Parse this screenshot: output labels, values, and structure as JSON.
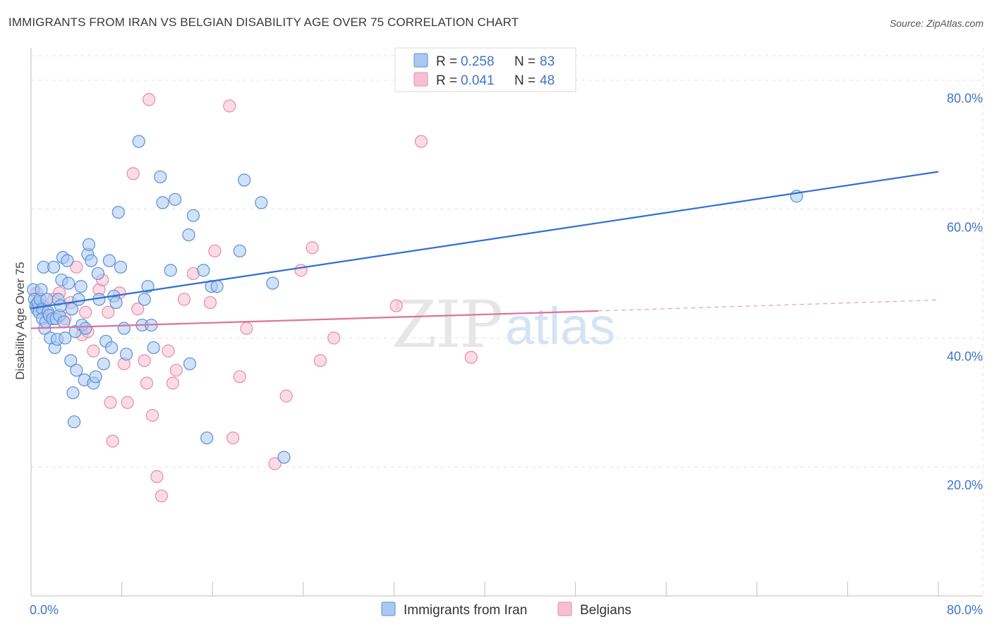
{
  "title": "IMMIGRANTS FROM IRAN VS BELGIAN DISABILITY AGE OVER 75 CORRELATION CHART",
  "source": "Source: ZipAtlas.com",
  "watermark": {
    "zip": "ZIP",
    "atlas": "atlas"
  },
  "colors": {
    "blue_fill": "#a9c8f2",
    "blue_stroke": "#5a8fd8",
    "blue_line": "#2f6fd0",
    "pink_fill": "#f7bfd1",
    "pink_stroke": "#e88aa8",
    "pink_line": "#e0709a",
    "tick_text": "#3f74cc",
    "grid": "#e3e3e3"
  },
  "legend": {
    "items": [
      {
        "r_label": "R = ",
        "r_value": "0.258",
        "n_label": "N = ",
        "n_value": "83"
      },
      {
        "r_label": "R = ",
        "r_value": "0.041",
        "n_label": "N = ",
        "n_value": "48"
      }
    ]
  },
  "chart_data": {
    "type": "scatter",
    "title": "IMMIGRANTS FROM IRAN VS BELGIAN DISABILITY AGE OVER 75 CORRELATION CHART",
    "xlabel": "",
    "ylabel": "Disability Age Over 75",
    "xlim": [
      0,
      80
    ],
    "ylim": [
      0,
      85
    ],
    "x_tick_labels": [
      "0.0%",
      "80.0%"
    ],
    "y_ticks": [
      20,
      40,
      60,
      80
    ],
    "y_tick_labels": [
      "20.0%",
      "40.0%",
      "60.0%",
      "80.0%"
    ],
    "grid": true,
    "legend_position": "top-center",
    "series": [
      {
        "name": "Immigrants from Iran",
        "R": 0.258,
        "N": 83,
        "trend": {
          "x0": 0,
          "y0": 44.6,
          "x1": 80,
          "y1": 65.8
        },
        "points": [
          [
            0.2,
            47.5
          ],
          [
            0.3,
            46
          ],
          [
            0.4,
            45
          ],
          [
            0.5,
            44.5
          ],
          [
            0.6,
            45.5
          ],
          [
            0.7,
            44
          ],
          [
            0.8,
            46
          ],
          [
            0.9,
            47.5
          ],
          [
            1.0,
            44.5
          ],
          [
            1.0,
            43
          ],
          [
            1.1,
            51
          ],
          [
            1.2,
            41.5
          ],
          [
            1.3,
            42.5
          ],
          [
            1.4,
            46
          ],
          [
            1.5,
            44
          ],
          [
            1.6,
            43.5
          ],
          [
            1.7,
            40
          ],
          [
            1.9,
            43
          ],
          [
            2.0,
            51
          ],
          [
            2.1,
            38.5
          ],
          [
            2.2,
            43
          ],
          [
            2.3,
            39.8
          ],
          [
            2.4,
            46
          ],
          [
            2.5,
            43.5
          ],
          [
            2.6,
            45
          ],
          [
            2.7,
            49
          ],
          [
            2.8,
            52.5
          ],
          [
            2.9,
            42.5
          ],
          [
            3.0,
            40
          ],
          [
            3.2,
            52
          ],
          [
            3.3,
            48.5
          ],
          [
            3.5,
            36.5
          ],
          [
            3.6,
            44.5
          ],
          [
            3.7,
            31.5
          ],
          [
            3.8,
            27
          ],
          [
            3.9,
            41
          ],
          [
            4.0,
            35
          ],
          [
            4.2,
            46
          ],
          [
            4.4,
            48
          ],
          [
            4.5,
            42
          ],
          [
            4.7,
            33.5
          ],
          [
            4.8,
            41.5
          ],
          [
            5.0,
            53
          ],
          [
            5.1,
            54.5
          ],
          [
            5.3,
            52
          ],
          [
            5.5,
            33
          ],
          [
            5.7,
            34
          ],
          [
            5.9,
            50
          ],
          [
            6.0,
            46
          ],
          [
            6.4,
            36
          ],
          [
            6.6,
            39.5
          ],
          [
            6.9,
            52
          ],
          [
            7.1,
            38.5
          ],
          [
            7.3,
            46.5
          ],
          [
            7.5,
            45.5
          ],
          [
            7.7,
            59.5
          ],
          [
            7.9,
            51
          ],
          [
            8.2,
            41.5
          ],
          [
            8.4,
            37.5
          ],
          [
            9.5,
            70.5
          ],
          [
            9.8,
            42
          ],
          [
            10.0,
            46
          ],
          [
            10.3,
            48
          ],
          [
            10.6,
            42
          ],
          [
            10.8,
            38.5
          ],
          [
            11.4,
            65
          ],
          [
            11.6,
            61
          ],
          [
            12.3,
            50.5
          ],
          [
            12.7,
            61.5
          ],
          [
            13.9,
            56
          ],
          [
            14.0,
            36
          ],
          [
            14.3,
            59
          ],
          [
            15.2,
            50.5
          ],
          [
            15.5,
            24.5
          ],
          [
            15.9,
            48
          ],
          [
            16.4,
            48
          ],
          [
            18.4,
            53.5
          ],
          [
            18.8,
            64.5
          ],
          [
            20.3,
            61
          ],
          [
            21.3,
            48.5
          ],
          [
            22.3,
            21.5
          ],
          [
            67.5,
            62
          ]
        ]
      },
      {
        "name": "Belgians",
        "R": 0.041,
        "N": 48,
        "trend": {
          "x0": 0,
          "y0": 41.5,
          "x1": 50,
          "y1": 44.2
        },
        "trend_dashed_to": {
          "x": 80,
          "y": 45.9
        },
        "points": [
          [
            0.5,
            47
          ],
          [
            1.0,
            45
          ],
          [
            1.5,
            44
          ],
          [
            2.0,
            46
          ],
          [
            2.5,
            47
          ],
          [
            3.0,
            43
          ],
          [
            3.5,
            45.5
          ],
          [
            4.0,
            51
          ],
          [
            4.5,
            40.5
          ],
          [
            5.0,
            41
          ],
          [
            5.5,
            38
          ],
          [
            6.0,
            47.5
          ],
          [
            6.3,
            49
          ],
          [
            6.8,
            44
          ],
          [
            7.0,
            30
          ],
          [
            7.2,
            24
          ],
          [
            7.8,
            47
          ],
          [
            8.2,
            36
          ],
          [
            8.5,
            30
          ],
          [
            9.0,
            65.5
          ],
          [
            9.4,
            44.5
          ],
          [
            10.0,
            36.5
          ],
          [
            10.2,
            33
          ],
          [
            10.7,
            28
          ],
          [
            11.1,
            18.5
          ],
          [
            11.5,
            15.5
          ],
          [
            12.1,
            38
          ],
          [
            12.5,
            33
          ],
          [
            12.8,
            35
          ],
          [
            13.5,
            46
          ],
          [
            14.3,
            50
          ],
          [
            15.8,
            45.5
          ],
          [
            16.2,
            53.5
          ],
          [
            17.8,
            24.5
          ],
          [
            18.4,
            34
          ],
          [
            19.0,
            41.5
          ],
          [
            21.5,
            20.5
          ],
          [
            22.5,
            31
          ],
          [
            23.8,
            50.5
          ],
          [
            24.8,
            54
          ],
          [
            25.5,
            36.5
          ],
          [
            26.7,
            40
          ],
          [
            32.2,
            45
          ],
          [
            34.4,
            70.5
          ],
          [
            38.8,
            37
          ],
          [
            10.4,
            77
          ],
          [
            17.5,
            76
          ],
          [
            4.8,
            44
          ]
        ]
      }
    ]
  },
  "bottom_legend": {
    "items": [
      "Immigrants from Iran",
      "Belgians"
    ]
  }
}
